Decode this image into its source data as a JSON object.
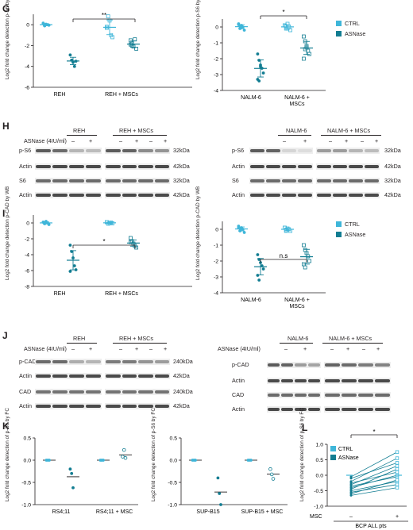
{
  "colors": {
    "ctrl": "#3fb6d9",
    "asnase": "#127d92",
    "axis": "#231f20",
    "band": "#4a4a4a"
  },
  "legend": {
    "ctrl": "CTRL",
    "asnase": "ASNase"
  },
  "panels": {
    "G": {
      "letter": "G",
      "ylabel": "Log2 fold change detection p-S6 by WB",
      "left": {
        "categories": [
          "REH",
          "REH + MSCs"
        ],
        "sig": "**",
        "yticks": [
          "0",
          "-2",
          "-4",
          "-6"
        ]
      },
      "right": {
        "categories": [
          "NALM-6",
          "NALM-6 + MSCs"
        ],
        "sig": "*",
        "yticks": [
          "0",
          "-1",
          "-2",
          "-3",
          "-4"
        ]
      }
    },
    "H": {
      "letter": "H",
      "asnase_label": "ASNase (4IU/ml)",
      "minus": "–",
      "plus": "+",
      "left": {
        "groups": [
          "REH",
          "REH + MSCs"
        ],
        "rows": [
          "p-S6",
          "Actin",
          "S6",
          "Actin"
        ],
        "sizes": [
          "32kDa",
          "42kDa",
          "32kDa",
          "42kDa"
        ]
      },
      "right": {
        "groups": [
          "NALM-6",
          "NALM-6 + MSCs"
        ],
        "rows": [
          "p-S6",
          "Actin",
          "S6",
          "Actin"
        ],
        "sizes": [
          "32kDa",
          "42kDa",
          "32kDa",
          "42kDa"
        ]
      }
    },
    "I": {
      "letter": "I",
      "ylabel": "Log2 fold change detection p-CAD by WB",
      "left": {
        "categories": [
          "REH",
          "REH + MSCs"
        ],
        "sig": "*",
        "yticks": [
          "0",
          "-2",
          "-4",
          "-6",
          "-8"
        ]
      },
      "right": {
        "categories": [
          "NALM-6",
          "NALM-6 + MSCs"
        ],
        "sig": "n.s",
        "yticks": [
          "0",
          "-1",
          "-2",
          "-3",
          "-4"
        ]
      }
    },
    "J": {
      "letter": "J",
      "asnase_label": "ASNase (4IU/ml)",
      "minus": "–",
      "plus": "+",
      "left": {
        "groups": [
          "REH",
          "REH + MSCs"
        ],
        "rows": [
          "p-CAD",
          "Actin",
          "CAD",
          "Actin"
        ],
        "sizes": [
          "240kDa",
          "42kDa",
          "240kDa",
          "42kDa"
        ]
      },
      "right": {
        "groups": [
          "NALM-6",
          "NALM-6 + MSCs"
        ],
        "rows": [
          "p-CAD",
          "Actin",
          "CAD",
          "Actin"
        ]
      }
    },
    "K": {
      "letter": "K",
      "ylabel": "Log2 fold change detection of p-S6 by FC",
      "left": {
        "categories": [
          "RS4;11",
          "RS4;11 + MSC"
        ],
        "yticks": [
          "0.5",
          "0.0",
          "-0.5",
          "-1.0"
        ]
      },
      "right": {
        "categories": [
          "SUP-B15",
          "SUP-B15 + MSC"
        ],
        "yticks": [
          "0.5",
          "0.0",
          "-0.5",
          "-1.0"
        ]
      }
    },
    "L": {
      "letter": "L",
      "ylabel": "Log2 fold change detection of p-S6 by FC",
      "sig": "*",
      "msc_label": "MSC",
      "minus": "–",
      "plus": "+",
      "xlabel": "BCP ALL pts",
      "yticks": [
        "1.0",
        "0.5",
        "0.0",
        "-0.5",
        "-1.0"
      ]
    }
  },
  "chart_data": [
    {
      "type": "scatter",
      "panel": "G-left",
      "ylabel": "Log2 fold change detection p-S6 by WB",
      "ylim": [
        -6,
        1
      ],
      "categories": [
        "REH",
        "REH + MSCs"
      ],
      "series": [
        {
          "name": "CTRL",
          "groups": [
            [
              0.1,
              -0.1,
              0.05,
              0,
              -0.05,
              0.15,
              -0.1,
              0
            ],
            [
              -0.3,
              0.8,
              0.4,
              -1.0,
              -1.2,
              -0.2
            ]
          ]
        },
        {
          "name": "ASNase",
          "groups": [
            [
              -2.9,
              -3.4,
              -3.6,
              -4.0,
              -3.5
            ],
            [
              -1.5,
              -1.8,
              -2.1,
              -1.4,
              -2.3,
              -1.9,
              -2.0
            ]
          ]
        }
      ]
    },
    {
      "type": "scatter",
      "panel": "G-right",
      "ylabel": "Log2 fold change detection p-S6 by WB",
      "ylim": [
        -4,
        0.5
      ],
      "categories": [
        "NALM-6",
        "NALM-6 + MSCs"
      ],
      "series": [
        {
          "name": "CTRL",
          "groups": [
            [
              0.2,
              -0.1,
              0.1,
              0,
              -0.2,
              0.15,
              0.05,
              -0.05
            ],
            [
              0.1,
              -0.1,
              0.2,
              0,
              -0.2,
              0.1,
              0.05,
              -0.1
            ]
          ]
        },
        {
          "name": "ASNase",
          "groups": [
            [
              -1.7,
              -2.1,
              -2.4,
              -2.6,
              -2.9,
              -3.3,
              -3.4,
              -2.5
            ],
            [
              -0.6,
              -0.9,
              -1.2,
              -1.5,
              -1.7,
              -2.0,
              -1.4,
              -1.3
            ]
          ]
        }
      ]
    },
    {
      "type": "scatter",
      "panel": "I-left",
      "ylabel": "Log2 fold change detection p-CAD by WB",
      "ylim": [
        -8,
        1
      ],
      "categories": [
        "REH",
        "REH + MSCs"
      ],
      "series": [
        {
          "name": "CTRL",
          "groups": [
            [
              0.1,
              -0.1,
              0.2,
              0,
              -0.2,
              0.1,
              -0.05
            ],
            [
              0.1,
              -0.1,
              0,
              0.05,
              -0.05,
              0.1
            ]
          ]
        },
        {
          "name": "ASNase",
          "groups": [
            [
              -2.8,
              -3.6,
              -4.4,
              -5.4,
              -5.9,
              -6.1
            ],
            [
              -1.9,
              -2.3,
              -2.6,
              -2.9,
              -3.1,
              -2.4
            ]
          ]
        }
      ]
    },
    {
      "type": "scatter",
      "panel": "I-right",
      "ylabel": "Log2 fold change detection p-CAD by WB",
      "ylim": [
        -4,
        0.5
      ],
      "categories": [
        "NALM-6",
        "NALM-6 + MSCs"
      ],
      "series": [
        {
          "name": "CTRL",
          "groups": [
            [
              0.2,
              -0.1,
              0.1,
              0,
              -0.2,
              0.1,
              0.05
            ],
            [
              0.1,
              -0.1,
              0.05,
              0,
              -0.1,
              0.1,
              -0.05
            ]
          ]
        },
        {
          "name": "ASNase",
          "groups": [
            [
              -1.6,
              -1.9,
              -2.1,
              -2.3,
              -2.5,
              -2.9,
              -3.2
            ],
            [
              -1.0,
              -1.3,
              -1.5,
              -1.7,
              -2.0,
              -2.2,
              -2.4
            ]
          ]
        }
      ]
    },
    {
      "type": "scatter",
      "panel": "K-left",
      "ylabel": "Log2 fold change detection of p-S6 by FC",
      "ylim": [
        -1.0,
        0.5
      ],
      "categories": [
        "RS4;11",
        "RS4;11 + MSC"
      ],
      "series": [
        {
          "name": "CTRL",
          "groups": [
            [
              0,
              0,
              0
            ],
            [
              0,
              0,
              0
            ]
          ]
        },
        {
          "name": "ASNase",
          "groups": [
            [
              -0.2,
              -0.3,
              -0.62
            ],
            [
              0.08,
              0.23,
              0.05
            ]
          ]
        }
      ]
    },
    {
      "type": "scatter",
      "panel": "K-right",
      "ylabel": "Log2 fold change detection of p-S6 by FC",
      "ylim": [
        -1.0,
        0.5
      ],
      "categories": [
        "SUP-B15",
        "SUP-B15 + MSC"
      ],
      "series": [
        {
          "name": "CTRL",
          "groups": [
            [
              0,
              0,
              0
            ],
            [
              0,
              0,
              0
            ]
          ]
        },
        {
          "name": "ASNase",
          "groups": [
            [
              -0.4,
              -0.75,
              -1.0
            ],
            [
              -0.2,
              -0.32,
              -0.42
            ]
          ]
        }
      ]
    },
    {
      "type": "line",
      "panel": "L",
      "ylabel": "Log2 fold change detection of p-S6 by FC",
      "ylim": [
        -1.0,
        1.0
      ],
      "categories": [
        "–",
        "+"
      ],
      "series": [
        {
          "name": "CTRL",
          "values": [
            0.0,
            0.0
          ]
        }
      ],
      "pairs": [
        [
          -0.05,
          0.75
        ],
        [
          -0.1,
          0.4
        ],
        [
          -0.2,
          0.55
        ],
        [
          -0.25,
          0.1
        ],
        [
          -0.3,
          0.3
        ],
        [
          -0.35,
          -0.05
        ],
        [
          -0.4,
          0.0
        ],
        [
          -0.45,
          0.2
        ],
        [
          -0.5,
          -0.2
        ],
        [
          -0.55,
          -0.3
        ],
        [
          -0.6,
          -0.15
        ],
        [
          -0.65,
          -0.4
        ]
      ]
    }
  ]
}
